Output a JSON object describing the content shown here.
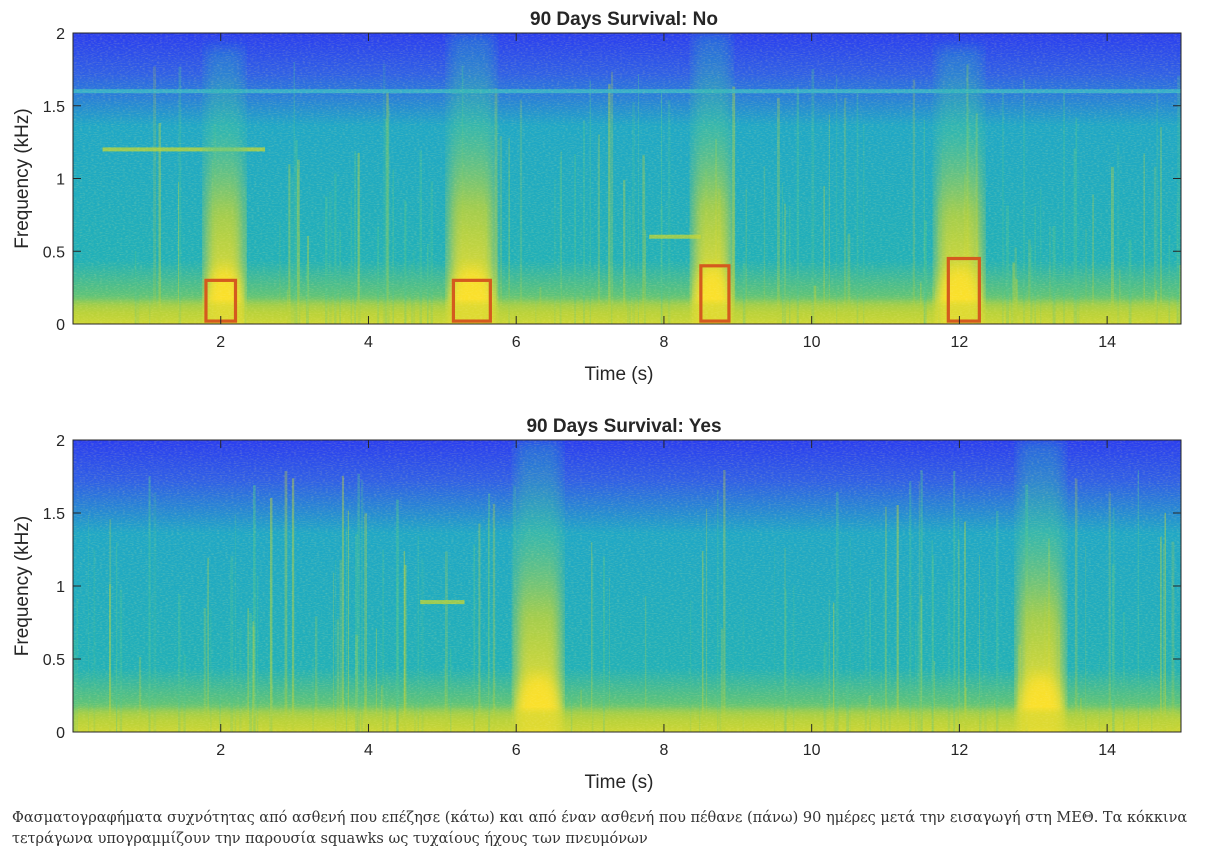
{
  "colors": {
    "low": "#2a3df0",
    "mid": "#1fa7c6",
    "high": "#b9d23a",
    "peak": "#ffe12a",
    "highlight_box": "#d45a1e"
  },
  "caption": "Φασματογραφήματα συχνότητας από ασθενή που επέζησε (κάτω) και από έναν ασθενή που πέθανε (πάνω) 90 ημέρες μετά την εισαγωγή στη ΜΕΘ. Τα κόκκινα τετράγωνα υπογραμμίζουν την παρουσία squawks ως τυχαίους ήχους των πνευμόνων",
  "chart_data": [
    {
      "type": "heatmap",
      "title": "90 Days Survival: No",
      "xlabel": "Time (s)",
      "ylabel": "Frequency (kHz)",
      "xlim": [
        0,
        15
      ],
      "ylim": [
        0,
        2
      ],
      "xticks": [
        2,
        4,
        6,
        8,
        10,
        12,
        14
      ],
      "yticks": [
        0,
        0.5,
        1,
        1.5,
        2
      ],
      "yticklabels": [
        "0",
        "0.5",
        "1",
        "1.5",
        "2"
      ],
      "colormap": "parula",
      "bursts": [
        {
          "t_start": 1.8,
          "t_end": 2.3,
          "f_top": 1.9
        },
        {
          "t_start": 5.1,
          "t_end": 5.7,
          "f_top": 2.0
        },
        {
          "t_start": 8.4,
          "t_end": 8.9,
          "f_top": 2.0
        },
        {
          "t_start": 11.7,
          "t_end": 12.3,
          "f_top": 1.9
        }
      ],
      "tones": [
        {
          "t_start": 0.0,
          "t_end": 15.0,
          "f": 1.6
        },
        {
          "t_start": 0.4,
          "t_end": 2.6,
          "f": 1.2
        },
        {
          "t_start": 7.8,
          "t_end": 8.5,
          "f": 0.6
        }
      ],
      "highlight_boxes": [
        {
          "t_start": 1.8,
          "t_end": 2.2,
          "f_low": 0.02,
          "f_high": 0.3
        },
        {
          "t_start": 5.15,
          "t_end": 5.65,
          "f_low": 0.02,
          "f_high": 0.3
        },
        {
          "t_start": 8.5,
          "t_end": 8.88,
          "f_low": 0.02,
          "f_high": 0.4
        },
        {
          "t_start": 11.85,
          "t_end": 12.27,
          "f_low": 0.02,
          "f_high": 0.45
        }
      ]
    },
    {
      "type": "heatmap",
      "title": "90 Days Survival: Yes",
      "xlabel": "Time (s)",
      "ylabel": "Frequency (kHz)",
      "xlim": [
        0,
        15
      ],
      "ylim": [
        0,
        2
      ],
      "xticks": [
        2,
        4,
        6,
        8,
        10,
        12,
        14
      ],
      "yticks": [
        0,
        0.5,
        1,
        1.5,
        2
      ],
      "yticklabels": [
        "0",
        "0.5",
        "1",
        "1.5",
        "2"
      ],
      "colormap": "parula",
      "bursts": [
        {
          "t_start": 6.0,
          "t_end": 6.6,
          "f_top": 2.0
        },
        {
          "t_start": 12.8,
          "t_end": 13.4,
          "f_top": 2.0
        }
      ],
      "tones": [
        {
          "t_start": 4.7,
          "t_end": 5.3,
          "f": 0.89
        }
      ],
      "highlight_boxes": []
    }
  ]
}
